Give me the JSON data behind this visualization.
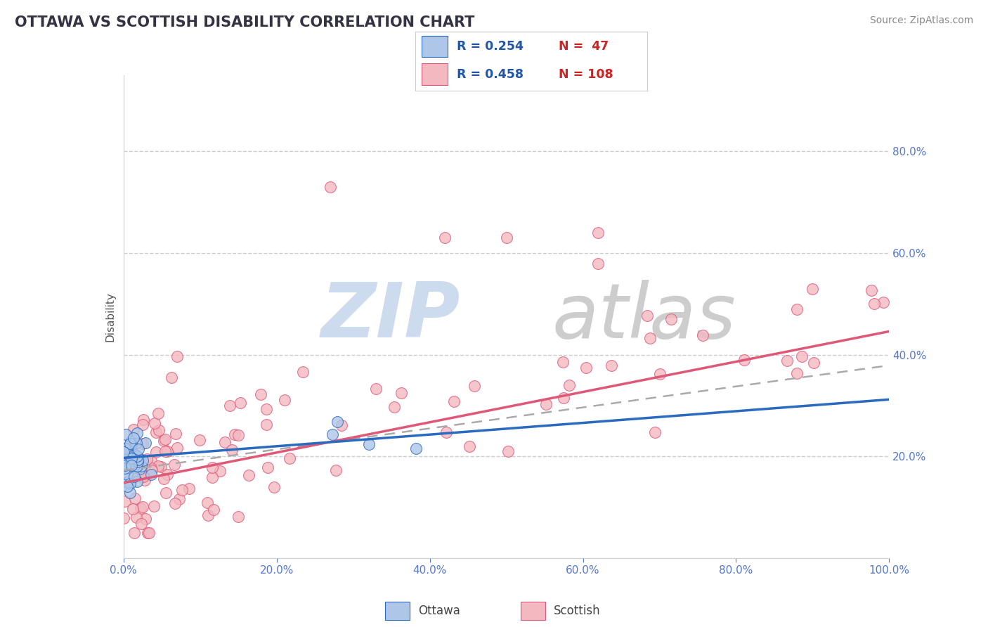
{
  "title": "OTTAWA VS SCOTTISH DISABILITY CORRELATION CHART",
  "source_text": "Source: ZipAtlas.com",
  "ylabel": "Disability",
  "xlim": [
    0.0,
    1.0
  ],
  "ylim": [
    0.0,
    0.95
  ],
  "xtick_positions": [
    0.0,
    0.2,
    0.4,
    0.6,
    0.8,
    1.0
  ],
  "xtick_labels": [
    "0.0%",
    "20.0%",
    "40.0%",
    "60.0%",
    "80.0%",
    "100.0%"
  ],
  "right_ytick_values": [
    0.2,
    0.4,
    0.6,
    0.8
  ],
  "right_ytick_labels": [
    "20.0%",
    "40.0%",
    "60.0%",
    "80.0%"
  ],
  "gridline_y": [
    0.2,
    0.4,
    0.6,
    0.8
  ],
  "ottawa_color": "#aec6e8",
  "scottish_color": "#f4b8c1",
  "ottawa_line_color": "#2a6abf",
  "scottish_line_color": "#e05878",
  "trend_dash_color": "#aaaaaa",
  "legend_R1": "0.254",
  "legend_N1": "47",
  "legend_R2": "0.458",
  "legend_N2": "108",
  "background_color": "#ffffff",
  "title_color": "#333344",
  "axis_label_color": "#555555",
  "source_color": "#888888",
  "tick_color": "#5577cc",
  "legend_box_color": "#dddddd",
  "watermark_zip_color": "#c8d8ee",
  "watermark_atlas_color": "#c8c8c8"
}
